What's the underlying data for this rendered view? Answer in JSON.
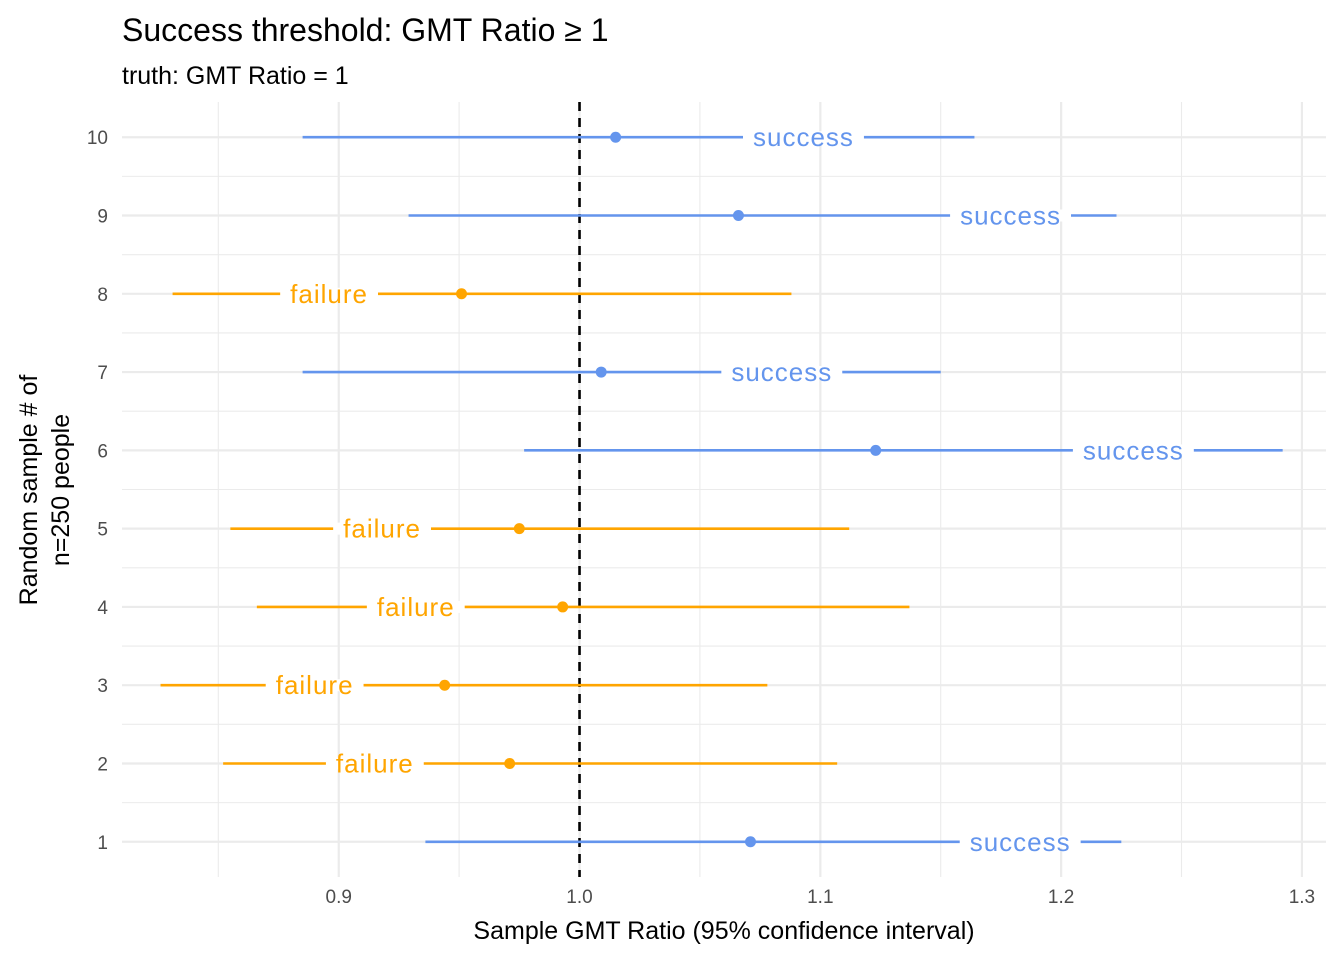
{
  "chart_data": {
    "type": "forest",
    "title": "Success threshold: GMT Ratio ≥ 1",
    "subtitle": "truth: GMT Ratio = 1",
    "xlabel": "Sample GMT Ratio (95% confidence interval)",
    "ylabel_lines": [
      "Random sample # of",
      "n=250 people"
    ],
    "xlim": [
      0.81,
      1.31
    ],
    "ylim": [
      0.55,
      10.45
    ],
    "x_ticks": [
      0.9,
      1.0,
      1.1,
      1.2,
      1.3
    ],
    "x_tick_labels": [
      "0.9",
      "1.0",
      "1.1",
      "1.2",
      "1.3"
    ],
    "y_ticks": [
      1,
      2,
      3,
      4,
      5,
      6,
      7,
      8,
      9,
      10
    ],
    "y_tick_labels": [
      "1",
      "2",
      "3",
      "4",
      "5",
      "6",
      "7",
      "8",
      "9",
      "10"
    ],
    "reference_line": 1.0,
    "grid": true,
    "legend": "none",
    "colors": {
      "success": "#6495ed",
      "failure": "#ffa500",
      "reference": "#000000",
      "grid": "#ebebeb"
    },
    "points": [
      {
        "sample": 1,
        "estimate": 1.071,
        "lower": 0.936,
        "upper": 1.225,
        "result": "success",
        "label_x": 1.183
      },
      {
        "sample": 2,
        "estimate": 0.971,
        "lower": 0.852,
        "upper": 1.107,
        "result": "failure",
        "label_x": 0.915
      },
      {
        "sample": 3,
        "estimate": 0.944,
        "lower": 0.826,
        "upper": 1.078,
        "result": "failure",
        "label_x": 0.89
      },
      {
        "sample": 4,
        "estimate": 0.993,
        "lower": 0.866,
        "upper": 1.137,
        "result": "failure",
        "label_x": 0.932
      },
      {
        "sample": 5,
        "estimate": 0.975,
        "lower": 0.855,
        "upper": 1.112,
        "result": "failure",
        "label_x": 0.918
      },
      {
        "sample": 6,
        "estimate": 1.123,
        "lower": 0.977,
        "upper": 1.292,
        "result": "success",
        "label_x": 1.23
      },
      {
        "sample": 7,
        "estimate": 1.009,
        "lower": 0.885,
        "upper": 1.15,
        "result": "success",
        "label_x": 1.084
      },
      {
        "sample": 8,
        "estimate": 0.951,
        "lower": 0.831,
        "upper": 1.088,
        "result": "failure",
        "label_x": 0.896
      },
      {
        "sample": 9,
        "estimate": 1.066,
        "lower": 0.929,
        "upper": 1.223,
        "result": "success",
        "label_x": 1.179
      },
      {
        "sample": 10,
        "estimate": 1.015,
        "lower": 0.885,
        "upper": 1.164,
        "result": "success",
        "label_x": 1.093
      }
    ],
    "result_labels": {
      "success": "success",
      "failure": "failure"
    }
  }
}
